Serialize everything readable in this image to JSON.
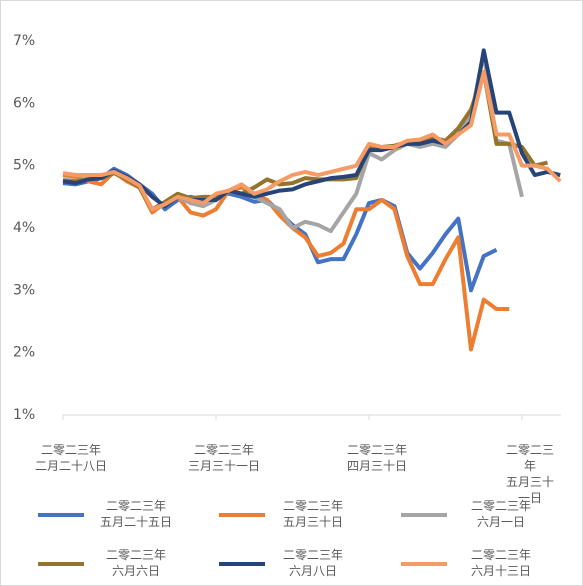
{
  "chart_data": {
    "type": "line",
    "categories": [
      "二零二三年\n二月二十八日",
      null,
      null,
      null,
      null,
      null,
      null,
      null,
      null,
      null,
      null,
      null,
      "二零二三年\n三月三十一日",
      null,
      null,
      null,
      null,
      null,
      null,
      null,
      null,
      null,
      null,
      null,
      "二零二三年\n四月三十日",
      null,
      null,
      null,
      null,
      null,
      null,
      null,
      null,
      null,
      null,
      null,
      "二零二三年\n五月三十一日",
      null,
      null,
      null
    ],
    "ylim": [
      1,
      7
    ],
    "yticks": [
      {
        "value": 1,
        "label": "1%"
      },
      {
        "value": 2,
        "label": "2%"
      },
      {
        "value": 3,
        "label": "3%"
      },
      {
        "value": 4,
        "label": "4%"
      },
      {
        "value": 5,
        "label": "5%"
      },
      {
        "value": 6,
        "label": "6%"
      },
      {
        "value": 7,
        "label": "7%"
      }
    ],
    "grid": false,
    "legend": "bottom",
    "series": [
      {
        "name": "二零二三年\n五月二十五日",
        "color": "#4472c4",
        "values": [
          4.72,
          4.7,
          4.75,
          4.8,
          4.95,
          4.85,
          4.7,
          4.55,
          4.3,
          4.45,
          4.5,
          4.45,
          4.5,
          4.55,
          4.5,
          4.42,
          4.45,
          4.25,
          4.05,
          3.9,
          3.45,
          3.5,
          3.5,
          3.9,
          4.4,
          4.45,
          4.35,
          3.6,
          3.35,
          3.6,
          3.9,
          4.15,
          3.0,
          3.55,
          3.65,
          null,
          null,
          null,
          null,
          null
        ]
      },
      {
        "name": "二零二三年\n五月三十日",
        "color": "#ed7d31",
        "values": [
          4.85,
          4.82,
          4.75,
          4.7,
          4.9,
          4.75,
          4.65,
          4.25,
          4.4,
          4.5,
          4.25,
          4.2,
          4.3,
          4.6,
          4.65,
          4.55,
          4.45,
          4.2,
          4.0,
          3.85,
          3.55,
          3.6,
          3.75,
          4.3,
          4.3,
          4.45,
          4.3,
          3.55,
          3.1,
          3.1,
          3.5,
          3.85,
          2.05,
          2.85,
          2.7,
          2.7,
          null,
          null,
          null,
          null
        ]
      },
      {
        "name": "二零二三年\n六月一日",
        "color": "#a5a5a5",
        "values": [
          4.78,
          4.75,
          4.8,
          4.8,
          4.9,
          4.8,
          4.65,
          4.3,
          4.4,
          4.5,
          4.4,
          4.35,
          4.45,
          4.6,
          4.55,
          4.5,
          4.4,
          4.3,
          4.0,
          4.1,
          4.05,
          3.95,
          4.25,
          4.55,
          5.2,
          5.1,
          5.25,
          5.35,
          5.3,
          5.35,
          5.3,
          5.5,
          5.8,
          6.8,
          5.4,
          5.35,
          4.5,
          null,
          null,
          null
        ]
      },
      {
        "name": "二零二三年\n六月六日",
        "color": "#94742c",
        "values": [
          4.75,
          4.75,
          4.78,
          4.8,
          4.88,
          4.78,
          4.65,
          4.3,
          4.42,
          4.55,
          4.48,
          4.5,
          4.5,
          4.6,
          4.55,
          4.65,
          4.78,
          4.7,
          4.72,
          4.8,
          4.78,
          4.78,
          4.78,
          4.8,
          5.3,
          5.3,
          5.32,
          5.38,
          5.4,
          5.45,
          5.4,
          5.6,
          5.9,
          6.5,
          5.35,
          5.35,
          5.3,
          5.0,
          5.05,
          null
        ]
      },
      {
        "name": "二零二三年\n六月八日",
        "color": "#264478",
        "values": [
          4.75,
          4.72,
          4.78,
          4.8,
          4.92,
          4.82,
          4.7,
          4.5,
          4.35,
          4.5,
          4.45,
          4.45,
          4.45,
          4.6,
          4.55,
          4.5,
          4.55,
          4.6,
          4.62,
          4.7,
          4.75,
          4.8,
          4.82,
          4.85,
          5.25,
          5.25,
          5.3,
          5.35,
          5.35,
          5.4,
          5.35,
          5.5,
          5.7,
          6.85,
          5.85,
          5.85,
          5.2,
          4.85,
          4.9,
          4.85
        ]
      },
      {
        "name": "二零二三年\n六月十三日",
        "color": "#f79b66",
        "values": [
          4.88,
          4.85,
          4.85,
          4.85,
          4.9,
          4.8,
          4.68,
          4.3,
          4.38,
          4.5,
          4.45,
          4.4,
          4.55,
          4.6,
          4.7,
          4.55,
          4.62,
          4.75,
          4.85,
          4.9,
          4.85,
          4.9,
          4.95,
          5.0,
          5.35,
          5.3,
          5.3,
          5.4,
          5.42,
          5.5,
          5.35,
          5.5,
          5.65,
          6.5,
          5.5,
          5.5,
          5.0,
          5.0,
          4.95,
          4.75
        ]
      }
    ]
  }
}
